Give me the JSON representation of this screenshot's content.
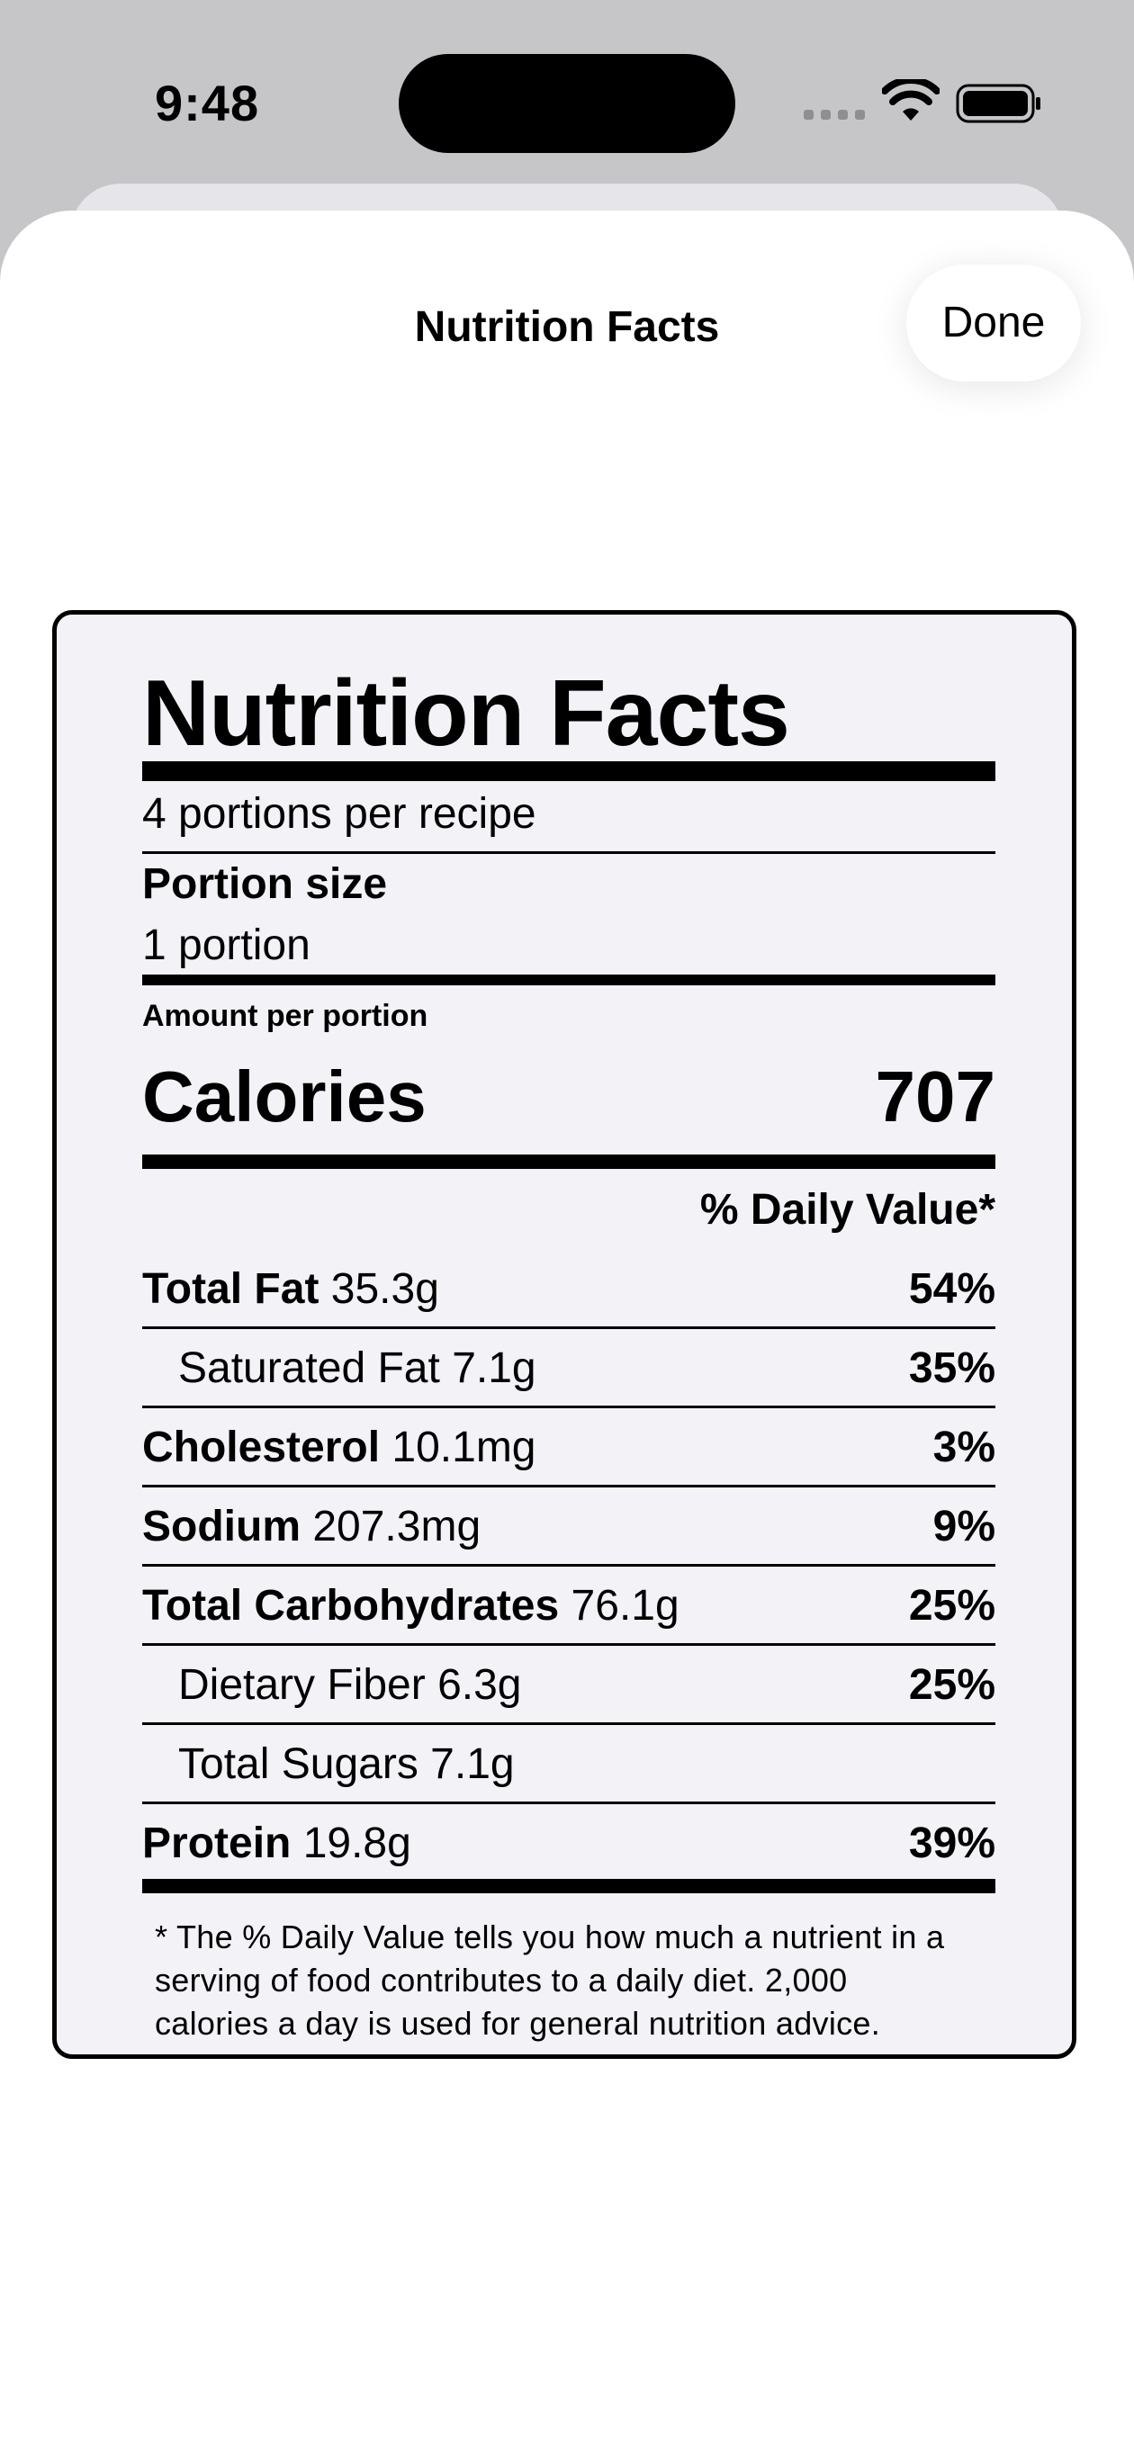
{
  "status_bar": {
    "time": "9:48"
  },
  "sheet": {
    "title": "Nutrition Facts",
    "done_label": "Done"
  },
  "label": {
    "heading": "Nutrition Facts",
    "servings": "4 portions per recipe",
    "portion_size_label": "Portion size",
    "portion_size_value": "1 portion",
    "amount_per": "Amount per portion",
    "calories_label": "Calories",
    "calories_value": "707",
    "dv_header": "% Daily Value*",
    "nutrients": [
      {
        "name": "Total Fat",
        "amount": "35.3g",
        "dv": "54%"
      },
      {
        "name": "Saturated Fat",
        "amount": "7.1g",
        "dv": "35%"
      },
      {
        "name": "Cholesterol",
        "amount": "10.1mg",
        "dv": "3%"
      },
      {
        "name": "Sodium",
        "amount": "207.3mg",
        "dv": "9%"
      },
      {
        "name": "Total Carbohydrates",
        "amount": "76.1g",
        "dv": "25%"
      },
      {
        "name": "Dietary Fiber",
        "amount": "6.3g",
        "dv": "25%"
      },
      {
        "name": "Total Sugars",
        "amount": "7.1g",
        "dv": ""
      },
      {
        "name": "Protein",
        "amount": "19.8g",
        "dv": "39%"
      }
    ],
    "footnote_lines": [
      "* The % Daily Value tells you how much a nutrient in a",
      "serving of food contributes to a daily diet. 2,000",
      "calories a day is used for general nutrition advice."
    ]
  },
  "icons": {
    "signal": "cellular-signal-icon",
    "wifi": "wifi-icon",
    "battery": "battery-icon"
  },
  "colors": {
    "backdrop": "#c6c6c8",
    "sheet": "#ffffff",
    "label_background": "#f2f2f7",
    "signal_dots": "#8e8e93"
  }
}
